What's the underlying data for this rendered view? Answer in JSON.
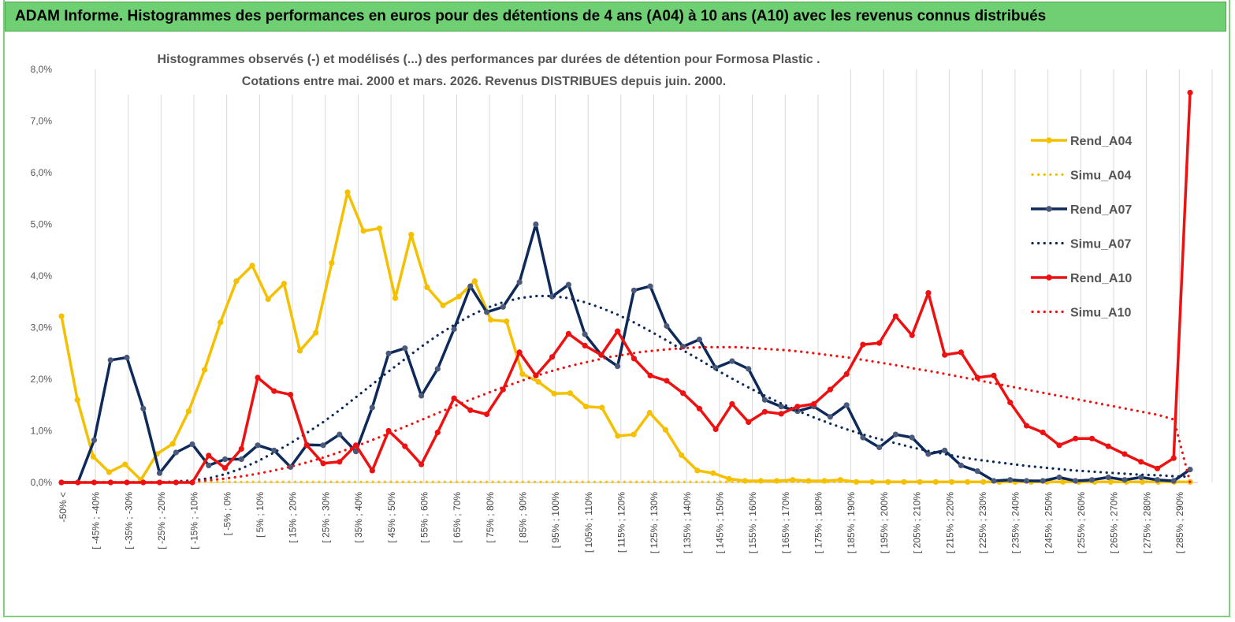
{
  "header": {
    "title": "ADAM Informe. Histogrammes des performances en euros pour des détentions de 4 ans (A04) à 10 ans (A10) avec les revenus connus distribués"
  },
  "chart_data": {
    "type": "line",
    "title_line1": "Histogrammes observés (-) et modélisés (...) des performances par durées de détention pour Formosa Plastic .",
    "title_line2": "Cotations entre mai. 2000 et mars. 2026. Revenus DISTRIBUES depuis juin. 2000.",
    "ylim": [
      0,
      8
    ],
    "y_ticks": [
      "0,0%",
      "1,0%",
      "2,0%",
      "3,0%",
      "4,0%",
      "5,0%",
      "6,0%",
      "7,0%",
      "8,0%"
    ],
    "x_labels": [
      "-50% <",
      "[ -45% ; -40%",
      "[ -35% ; -30%",
      "[ -25% ; -20%",
      "[ -15% ; -10%",
      "[ -5% ; 0%",
      "[ 5% ; 10%",
      "[ 15% ; 20%",
      "[ 25% ; 30%",
      "[ 35% ; 40%",
      "[ 45% ; 50%",
      "[ 55% ; 60%",
      "[ 65% ; 70%",
      "[ 75% ; 80%",
      "[ 85% ; 90%",
      "[ 95% ; 100%",
      "[ 105% ; 110%",
      "[ 115% ; 120%",
      "[ 125% ; 130%",
      "[ 135% ; 140%",
      "[ 145% ; 150%",
      "[ 155% ; 160%",
      "[ 165% ; 170%",
      "[ 175% ; 180%",
      "[ 185% ; 190%",
      "[ 195% ; 200%",
      "[ 205% ; 210%",
      "[ 215% ; 220%",
      "[ 225% ; 230%",
      "[ 235% ; 240%",
      "[ 245% ; 250%",
      "[ 255% ; 260%",
      "[ 265% ; 270%",
      "[ 275% ; 280%",
      "[ 285% ; 290%"
    ],
    "series": [
      {
        "name": "Rend_A04",
        "style": "solid",
        "color": "#f5c000",
        "values": [
          3.22,
          1.6,
          0.5,
          0.2,
          0.35,
          0.05,
          0.55,
          0.75,
          1.38,
          2.18,
          3.1,
          3.9,
          4.2,
          3.55,
          3.85,
          2.55,
          2.9,
          4.25,
          5.62,
          4.87,
          4.92,
          3.57,
          4.8,
          3.78,
          3.43,
          3.6,
          3.9,
          3.15,
          3.12,
          2.1,
          1.95,
          1.72,
          1.73,
          1.47,
          1.45,
          0.9,
          0.93,
          1.35,
          1.02,
          0.53,
          0.23,
          0.18,
          0.07,
          0.03,
          0.03,
          0.03,
          0.05,
          0.03,
          0.03,
          0.05,
          0.01,
          0.01,
          0.01,
          0.01,
          0.01,
          0.01,
          0.01,
          0.01,
          0.01,
          0.01,
          0.01,
          0.01,
          0.01,
          0.01,
          0.01,
          0.01,
          0.01,
          0.01,
          0.01,
          0.01,
          0.01,
          0.01
        ]
      },
      {
        "name": "Simu_A04",
        "style": "dotted",
        "color": "#f5c000",
        "values": [
          0.01,
          0.01,
          0.01,
          0.01,
          0.01,
          0.01,
          0.01,
          0.01,
          0.01,
          0.01,
          0.01,
          0.01,
          0.01,
          0.01,
          0.01,
          0.01,
          0.01,
          0.01,
          0.01,
          0.01,
          0.01,
          0.01,
          0.01,
          0.01,
          0.01,
          0.01,
          0.01,
          0.01,
          0.01,
          0.01,
          0.01,
          0.01,
          0.01,
          0.01,
          0.01,
          0.01,
          0.01,
          0.01,
          0.01,
          0.01,
          0.01,
          0.01,
          0.01,
          0.01,
          0.01,
          0.01,
          0.01,
          0.01,
          0.01,
          0.01,
          0.01,
          0.01,
          0.01,
          0.01,
          0.01,
          0.01,
          0.01,
          0.01,
          0.01,
          0.01,
          0.01,
          0.01,
          0.01,
          0.01,
          0.01,
          0.01,
          0.01,
          0.01,
          0.01,
          0.01,
          0.01,
          0.01
        ]
      },
      {
        "name": "Rend_A07",
        "style": "solid",
        "color": "#0d2a5a",
        "values": [
          0,
          0,
          0.82,
          2.37,
          2.42,
          1.43,
          0.18,
          0.58,
          0.74,
          0.33,
          0.45,
          0.45,
          0.72,
          0.62,
          0.3,
          0.73,
          0.72,
          0.93,
          0.6,
          1.45,
          2.5,
          2.6,
          1.68,
          2.2,
          2.97,
          3.8,
          3.3,
          3.4,
          3.88,
          5.0,
          3.6,
          3.83,
          2.87,
          2.47,
          2.25,
          3.72,
          3.8,
          3.03,
          2.63,
          2.77,
          2.22,
          2.35,
          2.2,
          1.6,
          1.47,
          1.38,
          1.47,
          1.27,
          1.5,
          0.87,
          0.68,
          0.93,
          0.87,
          0.55,
          0.62,
          0.33,
          0.22,
          0.03,
          0.05,
          0.03,
          0.03,
          0.1,
          0.03,
          0.05,
          0.1,
          0.05,
          0.1,
          0.05,
          0.03,
          0.25
        ]
      },
      {
        "name": "Simu_A07",
        "style": "dotted",
        "color": "#0d2a5a",
        "values": [
          0,
          0,
          0,
          0,
          0,
          0,
          0,
          0.02,
          0.04,
          0.08,
          0.16,
          0.27,
          0.41,
          0.58,
          0.76,
          0.96,
          1.17,
          1.4,
          1.65,
          1.9,
          2.15,
          2.39,
          2.63,
          2.85,
          3.05,
          3.23,
          3.38,
          3.49,
          3.57,
          3.61,
          3.61,
          3.57,
          3.49,
          3.38,
          3.25,
          3.1,
          2.93,
          2.75,
          2.56,
          2.38,
          2.19,
          2.01,
          1.84,
          1.68,
          1.53,
          1.39,
          1.26,
          1.14,
          1.03,
          0.93,
          0.84,
          0.76,
          0.68,
          0.61,
          0.55,
          0.49,
          0.44,
          0.4,
          0.36,
          0.32,
          0.29,
          0.26,
          0.23,
          0.21,
          0.19,
          0.17,
          0.15,
          0.14,
          0.12,
          0.11
        ]
      },
      {
        "name": "Rend_A10",
        "style": "solid",
        "color": "#ee1111",
        "values": [
          0,
          0,
          0,
          0,
          0,
          0,
          0,
          0,
          0,
          0.52,
          0.28,
          0.65,
          2.03,
          1.77,
          1.7,
          0.72,
          0.37,
          0.4,
          0.72,
          0.23,
          1.0,
          0.7,
          0.35,
          0.97,
          1.63,
          1.4,
          1.32,
          1.8,
          2.52,
          2.07,
          2.43,
          2.88,
          2.65,
          2.47,
          2.93,
          2.4,
          2.07,
          1.97,
          1.73,
          1.43,
          1.03,
          1.52,
          1.17,
          1.37,
          1.33,
          1.47,
          1.52,
          1.8,
          2.1,
          2.67,
          2.7,
          3.22,
          2.85,
          3.67,
          2.47,
          2.52,
          2.03,
          2.07,
          1.55,
          1.1,
          0.97,
          0.72,
          0.85,
          0.85,
          0.7,
          0.55,
          0.4,
          0.27,
          0.47,
          7.55
        ]
      },
      {
        "name": "Simu_A10",
        "style": "dotted",
        "color": "#ee1111",
        "values": [
          0,
          0,
          0,
          0,
          0,
          0,
          0,
          0.01,
          0.02,
          0.04,
          0.07,
          0.11,
          0.16,
          0.22,
          0.29,
          0.37,
          0.46,
          0.56,
          0.67,
          0.79,
          0.91,
          1.04,
          1.17,
          1.3,
          1.43,
          1.56,
          1.68,
          1.8,
          1.91,
          2.02,
          2.12,
          2.21,
          2.29,
          2.36,
          2.43,
          2.48,
          2.53,
          2.56,
          2.59,
          2.61,
          2.62,
          2.62,
          2.62,
          2.6,
          2.58,
          2.56,
          2.53,
          2.49,
          2.45,
          2.41,
          2.36,
          2.31,
          2.26,
          2.2,
          2.15,
          2.09,
          2.03,
          1.97,
          1.91,
          1.85,
          1.79,
          1.73,
          1.67,
          1.61,
          1.55,
          1.49,
          1.43,
          1.37,
          1.31,
          1.22,
          0.0
        ]
      }
    ],
    "legend_position": "right"
  }
}
